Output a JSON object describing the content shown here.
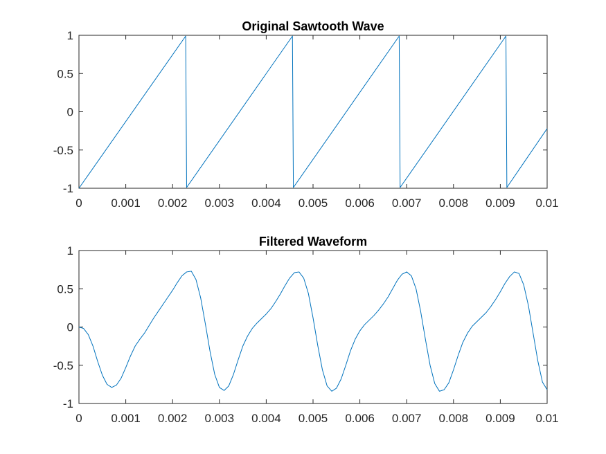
{
  "chart_data": [
    {
      "type": "line",
      "title": "Original Sawtooth Wave",
      "xlabel": "",
      "ylabel": "",
      "xlim": [
        0,
        0.01
      ],
      "ylim": [
        -1,
        1
      ],
      "xticks": [
        0,
        0.001,
        0.002,
        0.003,
        0.004,
        0.005,
        0.006,
        0.007,
        0.008,
        0.009,
        0.01
      ],
      "xtick_labels": [
        "0",
        "0.001",
        "0.002",
        "0.003",
        "0.004",
        "0.005",
        "0.006",
        "0.007",
        "0.008",
        "0.009",
        "0.01"
      ],
      "yticks": [
        -1,
        -0.5,
        0,
        0.5,
        1
      ],
      "ytick_labels": [
        "-1",
        "-0.5",
        "0",
        "0.5",
        "1"
      ],
      "grid": false,
      "series": [
        {
          "color": "#0072BD",
          "x": [
            0,
            0.00228,
            0.0023,
            0.00456,
            0.00458,
            0.00684,
            0.00686,
            0.00912,
            0.00914,
            0.01
          ],
          "y": [
            -1,
            0.99,
            -0.99,
            0.99,
            -0.99,
            0.99,
            -0.99,
            0.99,
            -0.99,
            -0.22
          ]
        }
      ]
    },
    {
      "type": "line",
      "title": "Filtered Waveform",
      "xlabel": "",
      "ylabel": "",
      "xlim": [
        0,
        0.01
      ],
      "ylim": [
        -1,
        1
      ],
      "xticks": [
        0,
        0.001,
        0.002,
        0.003,
        0.004,
        0.005,
        0.006,
        0.007,
        0.008,
        0.009,
        0.01
      ],
      "xtick_labels": [
        "0",
        "0.001",
        "0.002",
        "0.003",
        "0.004",
        "0.005",
        "0.006",
        "0.007",
        "0.008",
        "0.009",
        "0.01"
      ],
      "yticks": [
        -1,
        -0.5,
        0,
        0.5,
        1
      ],
      "ytick_labels": [
        "-1",
        "-0.5",
        "0",
        "0.5",
        "1"
      ],
      "grid": false,
      "series": [
        {
          "color": "#0072BD",
          "x": [
            0,
            0.0001,
            0.0002,
            0.0003,
            0.0004,
            0.0005,
            0.0006,
            0.0007,
            0.0008,
            0.0009,
            0.001,
            0.0011,
            0.0012,
            0.0013,
            0.0014,
            0.0015,
            0.0016,
            0.0017,
            0.0018,
            0.0019,
            0.002,
            0.0021,
            0.0022,
            0.0023,
            0.0024,
            0.0025,
            0.0026,
            0.0027,
            0.0028,
            0.0029,
            0.003,
            0.0031,
            0.0032,
            0.0033,
            0.0034,
            0.0035,
            0.0036,
            0.0037,
            0.0038,
            0.0039,
            0.004,
            0.0041,
            0.0042,
            0.0043,
            0.0044,
            0.0045,
            0.0046,
            0.0047,
            0.0048,
            0.0049,
            0.005,
            0.0051,
            0.0052,
            0.0053,
            0.0054,
            0.0055,
            0.0056,
            0.0057,
            0.0058,
            0.0059,
            0.006,
            0.0061,
            0.0062,
            0.0063,
            0.0064,
            0.0065,
            0.0066,
            0.0067,
            0.0068,
            0.0069,
            0.007,
            0.0071,
            0.0072,
            0.0073,
            0.0074,
            0.0075,
            0.0076,
            0.0077,
            0.0078,
            0.0079,
            0.008,
            0.0081,
            0.0082,
            0.0083,
            0.0084,
            0.0085,
            0.0086,
            0.0087,
            0.0088,
            0.0089,
            0.009,
            0.0091,
            0.0092,
            0.0093,
            0.0094,
            0.0095,
            0.0096,
            0.0097,
            0.0098,
            0.0099,
            0.01
          ],
          "y": [
            0,
            -0.02,
            -0.1,
            -0.25,
            -0.45,
            -0.63,
            -0.75,
            -0.79,
            -0.76,
            -0.67,
            -0.53,
            -0.38,
            -0.25,
            -0.16,
            -0.08,
            0.02,
            0.12,
            0.21,
            0.3,
            0.39,
            0.48,
            0.58,
            0.67,
            0.72,
            0.73,
            0.62,
            0.38,
            0.04,
            -0.32,
            -0.62,
            -0.79,
            -0.83,
            -0.77,
            -0.62,
            -0.43,
            -0.25,
            -0.12,
            -0.02,
            0.05,
            0.11,
            0.17,
            0.24,
            0.33,
            0.43,
            0.54,
            0.64,
            0.71,
            0.72,
            0.64,
            0.44,
            0.12,
            -0.24,
            -0.56,
            -0.77,
            -0.84,
            -0.8,
            -0.68,
            -0.5,
            -0.31,
            -0.16,
            -0.05,
            0.03,
            0.09,
            0.15,
            0.22,
            0.3,
            0.39,
            0.5,
            0.61,
            0.69,
            0.72,
            0.67,
            0.5,
            0.2,
            -0.16,
            -0.5,
            -0.74,
            -0.84,
            -0.82,
            -0.73,
            -0.56,
            -0.37,
            -0.2,
            -0.08,
            0.01,
            0.07,
            0.13,
            0.19,
            0.27,
            0.36,
            0.46,
            0.57,
            0.66,
            0.72,
            0.7,
            0.55,
            0.28,
            -0.08,
            -0.44,
            -0.72,
            -0.82
          ]
        }
      ]
    }
  ]
}
